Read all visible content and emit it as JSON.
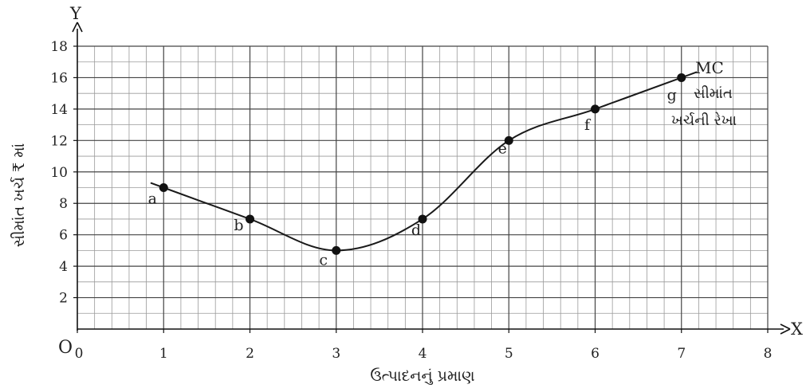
{
  "chart_data": {
    "type": "line",
    "xlabel": "ઉત્પાદનનું પ્રમાણ",
    "ylabel": "સીમાંત ખર્ચ ₹ માં",
    "x_axis_letter": "X",
    "y_axis_letter": "Y",
    "origin_label": "O",
    "xlim": [
      0,
      8
    ],
    "ylim": [
      0,
      18
    ],
    "x_ticks": [
      0,
      1,
      2,
      3,
      4,
      5,
      6,
      7,
      8
    ],
    "y_ticks": [
      2,
      4,
      6,
      8,
      10,
      12,
      14,
      16,
      18
    ],
    "x_minor_step": 0.2,
    "y_minor_step": 1,
    "grid": true,
    "series": [
      {
        "name": "MC",
        "color": "#1a1a1a",
        "points": [
          {
            "label": "a",
            "x": 1,
            "y": 9
          },
          {
            "label": "b",
            "x": 2,
            "y": 7
          },
          {
            "label": "c",
            "x": 3,
            "y": 5
          },
          {
            "label": "d",
            "x": 4,
            "y": 7
          },
          {
            "label": "e",
            "x": 5,
            "y": 12
          },
          {
            "label": "f",
            "x": 6,
            "y": 14
          },
          {
            "label": "g",
            "x": 7,
            "y": 16
          }
        ]
      }
    ],
    "curve_annotation": [
      "સીમાંત",
      "ખર્ચની રેખા"
    ]
  }
}
